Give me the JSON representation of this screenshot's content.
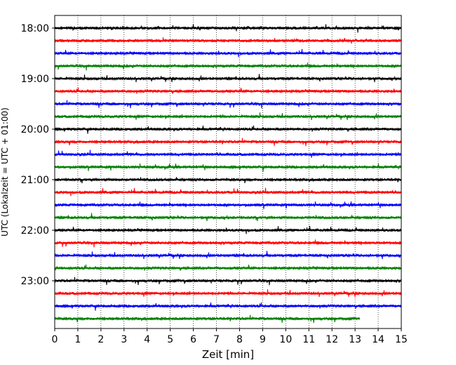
{
  "chart_data": {
    "type": "line",
    "title": "",
    "xlabel": "Zeit  [min]",
    "ylabel": "UTC (Lokalzeit = UTC + 01:00)",
    "xlim": [
      0,
      15
    ],
    "x_ticks": [
      0,
      1,
      2,
      3,
      4,
      5,
      6,
      7,
      8,
      9,
      10,
      11,
      12,
      13,
      14,
      15
    ],
    "y_ticks": [
      "18:00",
      "19:00",
      "20:00",
      "21:00",
      "22:00",
      "23:00"
    ],
    "grid": "vertical dotted",
    "trace_interval_min": 15,
    "colors_cycle": [
      "#000000",
      "#ff0000",
      "#0000ff",
      "#008000"
    ],
    "series": [
      {
        "start": "18:00",
        "color": "#000000",
        "end_min": 15
      },
      {
        "start": "18:15",
        "color": "#ff0000",
        "end_min": 15
      },
      {
        "start": "18:30",
        "color": "#0000ff",
        "end_min": 15
      },
      {
        "start": "18:45",
        "color": "#008000",
        "end_min": 15
      },
      {
        "start": "19:00",
        "color": "#000000",
        "end_min": 15
      },
      {
        "start": "19:15",
        "color": "#ff0000",
        "end_min": 15
      },
      {
        "start": "19:30",
        "color": "#0000ff",
        "end_min": 15
      },
      {
        "start": "19:45",
        "color": "#008000",
        "end_min": 15
      },
      {
        "start": "20:00",
        "color": "#000000",
        "end_min": 15
      },
      {
        "start": "20:15",
        "color": "#ff0000",
        "end_min": 15
      },
      {
        "start": "20:30",
        "color": "#0000ff",
        "end_min": 15
      },
      {
        "start": "20:45",
        "color": "#008000",
        "end_min": 15
      },
      {
        "start": "21:00",
        "color": "#000000",
        "end_min": 15
      },
      {
        "start": "21:15",
        "color": "#ff0000",
        "end_min": 15
      },
      {
        "start": "21:30",
        "color": "#0000ff",
        "end_min": 15
      },
      {
        "start": "21:45",
        "color": "#008000",
        "end_min": 15
      },
      {
        "start": "22:00",
        "color": "#000000",
        "end_min": 15
      },
      {
        "start": "22:15",
        "color": "#ff0000",
        "end_min": 15
      },
      {
        "start": "22:30",
        "color": "#0000ff",
        "end_min": 15
      },
      {
        "start": "22:45",
        "color": "#008000",
        "end_min": 15
      },
      {
        "start": "23:00",
        "color": "#000000",
        "end_min": 15
      },
      {
        "start": "23:15",
        "color": "#ff0000",
        "end_min": 15
      },
      {
        "start": "23:30",
        "color": "#0000ff",
        "end_min": 15
      },
      {
        "start": "23:45",
        "color": "#008000",
        "end_min": 13.2
      }
    ]
  }
}
